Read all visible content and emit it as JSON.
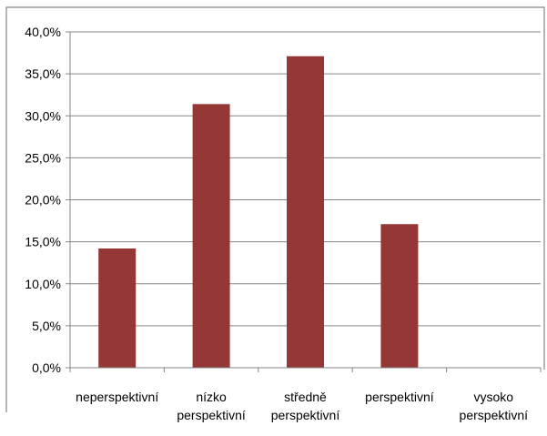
{
  "colors": {
    "bar": "#953735",
    "grid": "#868686",
    "axis": "#868686",
    "border": "#868686",
    "background": "#ffffff"
  },
  "chart_data": {
    "type": "bar",
    "categories": [
      [
        "neperspektivní"
      ],
      [
        "nízko",
        "perspektivní"
      ],
      [
        "středně",
        "perspektivní"
      ],
      [
        "perspektivní"
      ],
      [
        "vysoko",
        "perspektivní"
      ]
    ],
    "values": [
      14.2,
      31.4,
      37.1,
      17.1,
      0.0
    ],
    "ylim": [
      0,
      40
    ],
    "yticks": [
      0,
      5,
      10,
      15,
      20,
      25,
      30,
      35,
      40
    ],
    "ytick_labels": [
      "0,0%",
      "5,0%",
      "10,0%",
      "15,0%",
      "20,0%",
      "25,0%",
      "30,0%",
      "35,0%",
      "40,0%"
    ],
    "y_unit": "percent",
    "grid": true,
    "legend": "none",
    "title": "",
    "xlabel": "",
    "ylabel": ""
  }
}
